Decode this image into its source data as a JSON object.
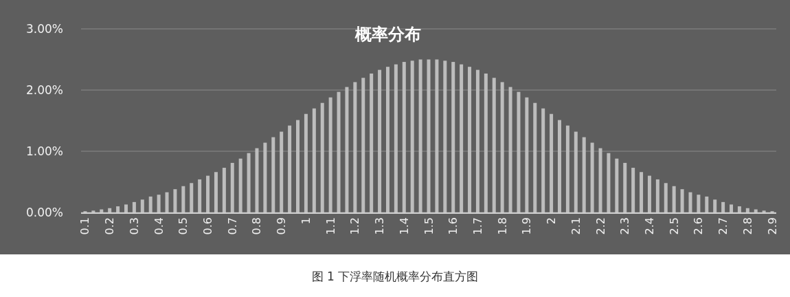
{
  "chart_data": {
    "type": "bar",
    "title": "概率分布",
    "annotations": [
      "图 1 下浮率随机概率分布直方图"
    ],
    "categories": [
      "0.1",
      null,
      null,
      "0.2",
      null,
      null,
      "0.3",
      null,
      null,
      "0.4",
      null,
      null,
      "0.5",
      null,
      null,
      "0.6",
      null,
      null,
      "0.7",
      null,
      null,
      "0.8",
      null,
      null,
      "0.9",
      null,
      null,
      "1",
      null,
      null,
      "1.1",
      null,
      null,
      "1.2",
      null,
      null,
      "1.3",
      null,
      null,
      "1.4",
      null,
      null,
      "1.5",
      null,
      null,
      "1.6",
      null,
      null,
      "1.7",
      null,
      null,
      "1.8",
      null,
      null,
      "1.9",
      null,
      null,
      "2",
      null,
      null,
      "2.1",
      null,
      null,
      "2.2",
      null,
      null,
      "2.3",
      null,
      null,
      "2.4",
      null,
      null,
      "2.5",
      null,
      null,
      "2.6",
      null,
      null,
      "2.7",
      null,
      null,
      "2.8",
      null,
      null,
      "2.9"
    ],
    "values": [
      0.02,
      0.03,
      0.05,
      0.07,
      0.1,
      0.13,
      0.17,
      0.21,
      0.26,
      0.29,
      0.33,
      0.38,
      0.43,
      0.48,
      0.54,
      0.6,
      0.66,
      0.73,
      0.81,
      0.88,
      0.97,
      1.05,
      1.14,
      1.23,
      1.32,
      1.42,
      1.51,
      1.61,
      1.7,
      1.79,
      1.88,
      1.97,
      2.05,
      2.13,
      2.2,
      2.27,
      2.33,
      2.38,
      2.42,
      2.46,
      2.48,
      2.5,
      2.5,
      2.5,
      2.48,
      2.46,
      2.42,
      2.38,
      2.33,
      2.27,
      2.2,
      2.13,
      2.05,
      1.97,
      1.88,
      1.79,
      1.7,
      1.61,
      1.51,
      1.42,
      1.32,
      1.23,
      1.14,
      1.05,
      0.97,
      0.88,
      0.81,
      0.73,
      0.66,
      0.6,
      0.54,
      0.48,
      0.43,
      0.38,
      0.33,
      0.29,
      0.26,
      0.21,
      0.17,
      0.13,
      0.1,
      0.07,
      0.05,
      0.03,
      0.02
    ],
    "color": "#bdbdbd",
    "ylim": [
      0,
      3
    ],
    "yticks": [
      {
        "value": 0,
        "label": "0.00%"
      },
      {
        "value": 1,
        "label": "1.00%"
      },
      {
        "value": 2,
        "label": "2.00%"
      },
      {
        "value": 3,
        "label": "3.00%"
      }
    ],
    "grid": "y"
  }
}
